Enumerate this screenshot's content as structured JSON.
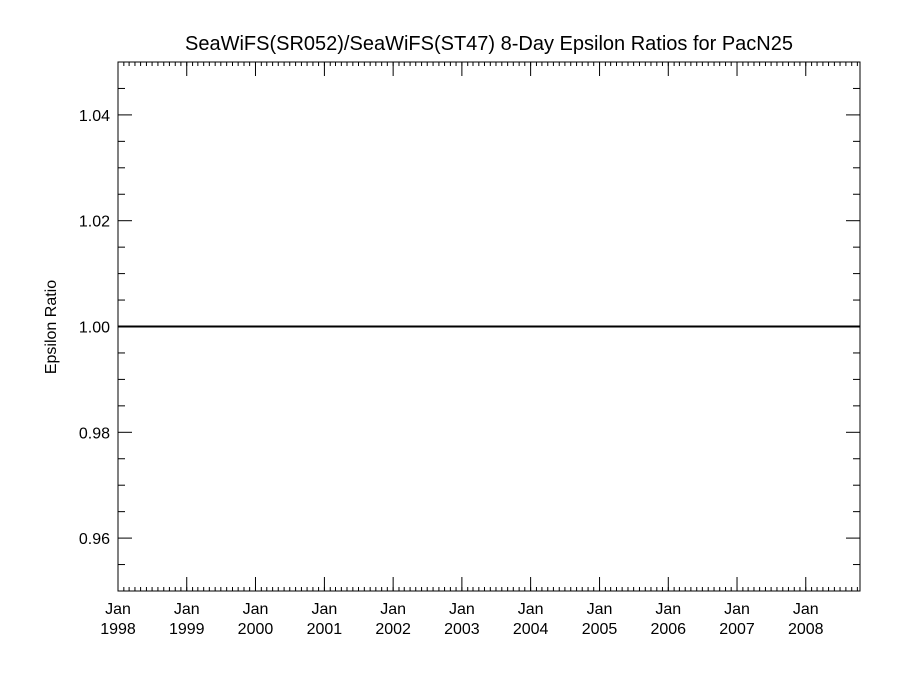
{
  "chart_data": {
    "type": "line",
    "title": "SeaWiFS(SR052)/SeaWiFS(ST47) 8-Day Epsilon Ratios for PacN25",
    "xlabel": "",
    "ylabel": "Epsilon Ratio",
    "xlim": [
      "1998-01-01",
      "2008-10-15"
    ],
    "ylim": [
      0.95,
      1.05
    ],
    "y_ticks": [
      {
        "value": 0.96,
        "label": "0.96"
      },
      {
        "value": 0.98,
        "label": "0.98"
      },
      {
        "value": 1.0,
        "label": "1.00"
      },
      {
        "value": 1.02,
        "label": "1.02"
      },
      {
        "value": 1.04,
        "label": "1.04"
      }
    ],
    "x_ticks": [
      {
        "date": "1998-01-01",
        "month": "Jan",
        "year": "1998"
      },
      {
        "date": "1999-01-01",
        "month": "Jan",
        "year": "1999"
      },
      {
        "date": "2000-01-01",
        "month": "Jan",
        "year": "2000"
      },
      {
        "date": "2001-01-01",
        "month": "Jan",
        "year": "2001"
      },
      {
        "date": "2002-01-01",
        "month": "Jan",
        "year": "2002"
      },
      {
        "date": "2003-01-01",
        "month": "Jan",
        "year": "2003"
      },
      {
        "date": "2004-01-01",
        "month": "Jan",
        "year": "2004"
      },
      {
        "date": "2005-01-01",
        "month": "Jan",
        "year": "2005"
      },
      {
        "date": "2006-01-01",
        "month": "Jan",
        "year": "2006"
      },
      {
        "date": "2007-01-01",
        "month": "Jan",
        "year": "2007"
      },
      {
        "date": "2008-01-01",
        "month": "Jan",
        "year": "2008"
      }
    ],
    "series": [
      {
        "color": "#000000",
        "points": [
          {
            "x": "1997-09-15",
            "y": 1.0
          },
          {
            "x": "1999-01-01",
            "y": 1.0
          },
          {
            "x": "2000-01-01",
            "y": 1.0
          },
          {
            "x": "2001-01-01",
            "y": 1.0
          },
          {
            "x": "2002-01-01",
            "y": 1.0
          },
          {
            "x": "2003-01-01",
            "y": 1.0
          },
          {
            "x": "2004-01-01",
            "y": 1.0
          },
          {
            "x": "2005-01-01",
            "y": 1.0
          },
          {
            "x": "2006-01-01",
            "y": 1.0
          },
          {
            "x": "2007-01-01",
            "y": 1.0
          },
          {
            "x": "2008-01-01",
            "y": 1.0
          },
          {
            "x": "2008-10-15",
            "y": 1.0
          }
        ]
      }
    ],
    "grid": false,
    "legend": "none"
  }
}
